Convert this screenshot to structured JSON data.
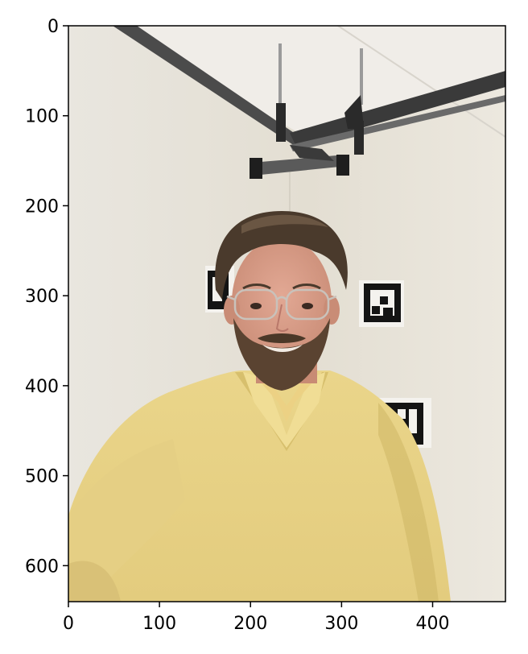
{
  "chart_data": {
    "type": "image",
    "x_ticks": [
      "0",
      "100",
      "200",
      "300",
      "400"
    ],
    "x_tick_values": [
      0,
      100,
      200,
      300,
      400
    ],
    "y_ticks": [
      "0",
      "100",
      "200",
      "300",
      "400",
      "500",
      "600"
    ],
    "y_tick_values": [
      0,
      100,
      200,
      300,
      400,
      500,
      600
    ],
    "xlim": [
      0,
      480
    ],
    "ylim": [
      640,
      0
    ],
    "colors": {
      "wall": "#e6e1d6",
      "ceiling": "#efece6",
      "sweater": "#ead58a",
      "sweater_shadow": "#cdb765",
      "hair": "#4a3a2c",
      "skin": "#d79c86",
      "beard": "#5a4331",
      "rail": "#2f2f2f",
      "marker_black": "#141414"
    }
  }
}
